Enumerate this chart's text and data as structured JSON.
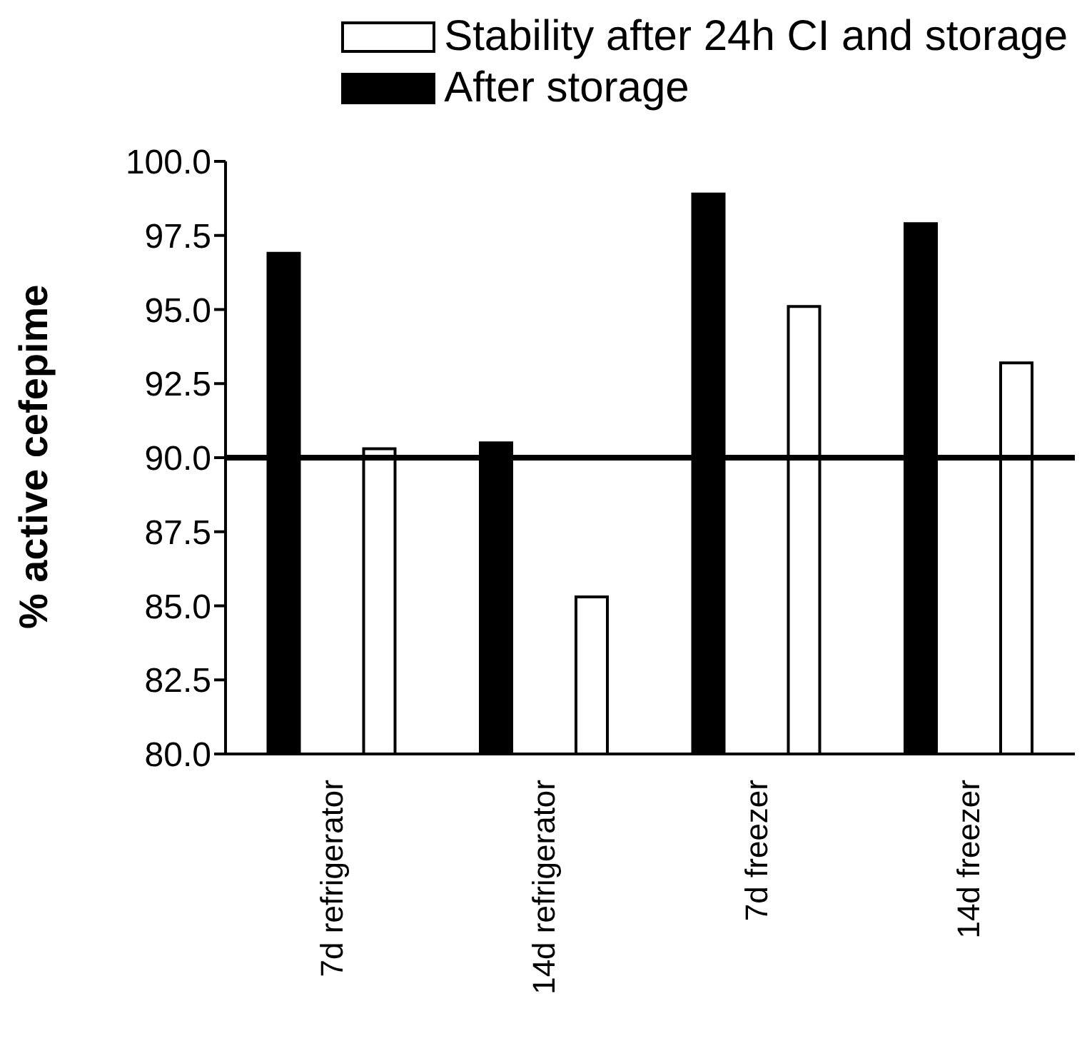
{
  "chart_data": {
    "type": "bar",
    "ylabel": "% active cefepime",
    "categories": [
      "7d refrigerator",
      "14d refrigerator",
      "7d freezer",
      "14d freezer"
    ],
    "series": [
      {
        "name": "After storage",
        "color": "#000000",
        "values": [
          96.9,
          90.5,
          98.9,
          97.9
        ]
      },
      {
        "name": "Stability after 24h CI and storage",
        "color": "#ffffff",
        "values": [
          90.3,
          85.3,
          95.1,
          93.2
        ]
      }
    ],
    "ylim": [
      80,
      100
    ],
    "yticks": [
      {
        "value": 80,
        "label": "80.0"
      },
      {
        "value": 82.5,
        "label": "82.5"
      },
      {
        "value": 85,
        "label": "85.0"
      },
      {
        "value": 87.5,
        "label": "87.5"
      },
      {
        "value": 90,
        "label": "90.0"
      },
      {
        "value": 92.5,
        "label": "92.5"
      },
      {
        "value": 95,
        "label": "95.0"
      },
      {
        "value": 97.5,
        "label": "97.5"
      },
      {
        "value": 100,
        "label": "100.0"
      }
    ],
    "ref_lines": [
      {
        "axis": "y",
        "value": 90,
        "color": "#000000",
        "line_style": "solid"
      }
    ],
    "grid": false,
    "legend": "top right"
  }
}
